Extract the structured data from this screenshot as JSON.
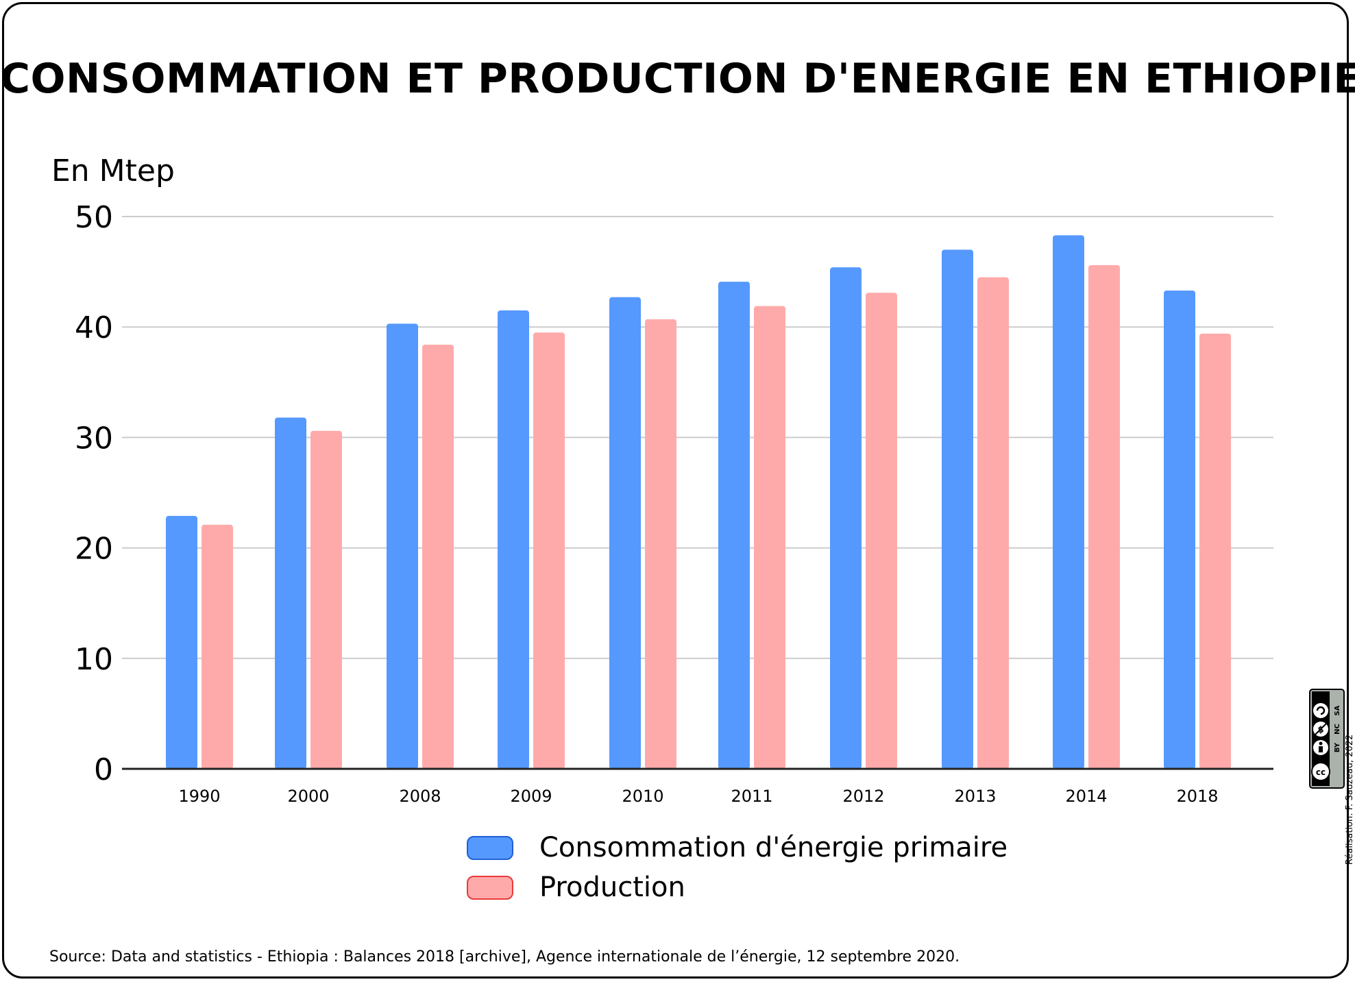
{
  "title": "CONSOMMATION ET PRODUCTION D'ENERGIE EN ETHIOPIE",
  "source": "Source: Data and statistics - Ethiopia : Balances 2018 [archive], Agence internationale de l’énergie, 12 septembre 2020.",
  "credit": "Réalisation: F. Sauzeau, 2022",
  "license_badge": {
    "icon": "creative-commons-by-nc-sa-icon",
    "labels": [
      "BY",
      "NC",
      "SA"
    ]
  },
  "chart_data": {
    "type": "bar",
    "title": "CONSOMMATION ET PRODUCTION D'ENERGIE EN ETHIOPIE",
    "xlabel": "",
    "ylabel": "En Mtep",
    "ylim": [
      0,
      50
    ],
    "yticks": [
      0,
      10,
      20,
      30,
      40,
      50
    ],
    "grid": true,
    "legend_position": "bottom",
    "categories": [
      "1990",
      "2000",
      "2008",
      "2009",
      "2010",
      "2011",
      "2012",
      "2013",
      "2014",
      "2018"
    ],
    "series": [
      {
        "name": "Consommation d'énergie primaire",
        "color": "#5599ff",
        "border": "#1e5fd6",
        "values": [
          22.9,
          31.8,
          40.3,
          41.5,
          42.7,
          44.1,
          45.4,
          47.0,
          48.3,
          43.3
        ]
      },
      {
        "name": "Production",
        "color": "#ffaaaa",
        "border": "#e83a3a",
        "values": [
          22.1,
          30.6,
          38.4,
          39.5,
          40.7,
          41.9,
          43.1,
          44.5,
          45.6,
          39.4
        ]
      }
    ]
  }
}
